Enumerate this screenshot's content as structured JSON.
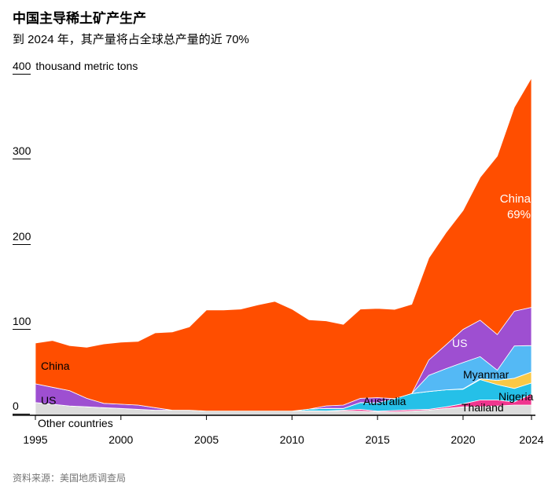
{
  "header": {
    "title": "中国主导稀土矿产生产",
    "subtitle": "到 2024 年，其产量将占全球总产量的近 70%"
  },
  "source": "资料来源：美国地质调查局",
  "y_axis": {
    "unit_suffix": "thousand metric tons",
    "ticks": [
      400,
      300,
      200,
      100,
      0
    ]
  },
  "x_axis": {
    "ticks": [
      1995,
      2000,
      2005,
      2010,
      2015,
      2020,
      2024
    ]
  },
  "annotations": {
    "china_left": "China",
    "us_left": "US",
    "other_countries": "Other countries",
    "australia": "Australia",
    "us_right": "US",
    "myanmar": "Myanmar",
    "nigeria": "Nigeria",
    "thailand": "Thailand",
    "china_pct_name": "China",
    "china_pct_value": "69%"
  },
  "chart_data": {
    "type": "area",
    "stacked": true,
    "title": "中国主导稀土矿产生产",
    "subtitle": "到 2024 年，其产量将占全球总产量的近 70%",
    "xlabel": "",
    "ylabel": "thousand metric tons",
    "xlim": [
      1995,
      2024
    ],
    "ylim": [
      0,
      400
    ],
    "grid": false,
    "legend": "inline-labels",
    "x": [
      1995,
      1996,
      1997,
      1998,
      1999,
      2000,
      2001,
      2002,
      2003,
      2004,
      2005,
      2006,
      2007,
      2008,
      2009,
      2010,
      2011,
      2012,
      2013,
      2014,
      2015,
      2016,
      2017,
      2018,
      2019,
      2020,
      2021,
      2022,
      2023,
      2024
    ],
    "series": [
      {
        "id": "other",
        "name": "Other countries",
        "color": "#dcdcdc",
        "values": [
          15,
          13,
          11,
          10,
          9,
          8,
          7,
          6,
          6,
          6,
          5,
          5,
          5,
          5,
          5,
          5,
          5,
          5,
          5,
          5,
          4,
          4,
          5,
          6,
          8,
          10,
          10,
          11,
          12,
          12
        ]
      },
      {
        "id": "thailand",
        "name": "Thailand",
        "color": "#f0368f",
        "values": [
          0,
          0,
          0,
          0,
          0,
          0,
          0,
          0,
          0,
          0,
          0,
          0,
          0,
          0,
          0,
          0,
          0.3,
          0.1,
          1,
          2,
          0.8,
          1.6,
          1.6,
          1,
          1.9,
          3.6,
          8,
          7,
          3.6,
          13
        ]
      },
      {
        "id": "australia",
        "name": "Australia",
        "color": "#25c0e8",
        "values": [
          0,
          0,
          0,
          0,
          0,
          0,
          0,
          0,
          0,
          0,
          0,
          0,
          0,
          0,
          0,
          0,
          2,
          3,
          2,
          8,
          10,
          14,
          19,
          21,
          20,
          17,
          24,
          18,
          16,
          13
        ]
      },
      {
        "id": "nigeria",
        "name": "Nigeria",
        "color": "#fac846",
        "values": [
          0,
          0,
          0,
          0,
          0,
          0,
          0,
          0,
          0,
          0,
          0,
          0,
          0,
          0,
          0,
          0,
          0,
          0,
          0,
          0,
          0,
          0,
          0,
          0,
          0,
          0.5,
          1,
          5,
          12,
          13
        ]
      },
      {
        "id": "myanmar",
        "name": "Myanmar",
        "color": "#54b9f5",
        "values": [
          0,
          0,
          0,
          0,
          0,
          0,
          0,
          0,
          0,
          0,
          0,
          0,
          0,
          0,
          0,
          0,
          0,
          0,
          0,
          0,
          0,
          0,
          0,
          19,
          25,
          31,
          26,
          12,
          38,
          31
        ]
      },
      {
        "id": "us",
        "name": "US",
        "color": "#9e4fd1",
        "values": [
          22,
          20,
          18,
          10,
          5,
          5,
          5,
          3,
          0,
          0,
          0,
          0,
          0,
          0,
          0,
          0,
          0,
          3,
          4,
          5,
          6,
          0,
          0,
          18,
          28,
          39,
          43,
          42,
          41,
          45
        ]
      },
      {
        "id": "china",
        "name": "China",
        "color": "#ff4e00",
        "values": [
          48,
          55,
          53,
          60,
          70,
          73,
          75,
          88,
          92,
          98,
          119,
          119,
          120,
          125,
          129,
          120,
          105,
          100,
          95,
          105,
          105,
          105,
          105,
          120,
          132,
          140,
          168,
          210,
          240,
          270
        ]
      }
    ]
  }
}
